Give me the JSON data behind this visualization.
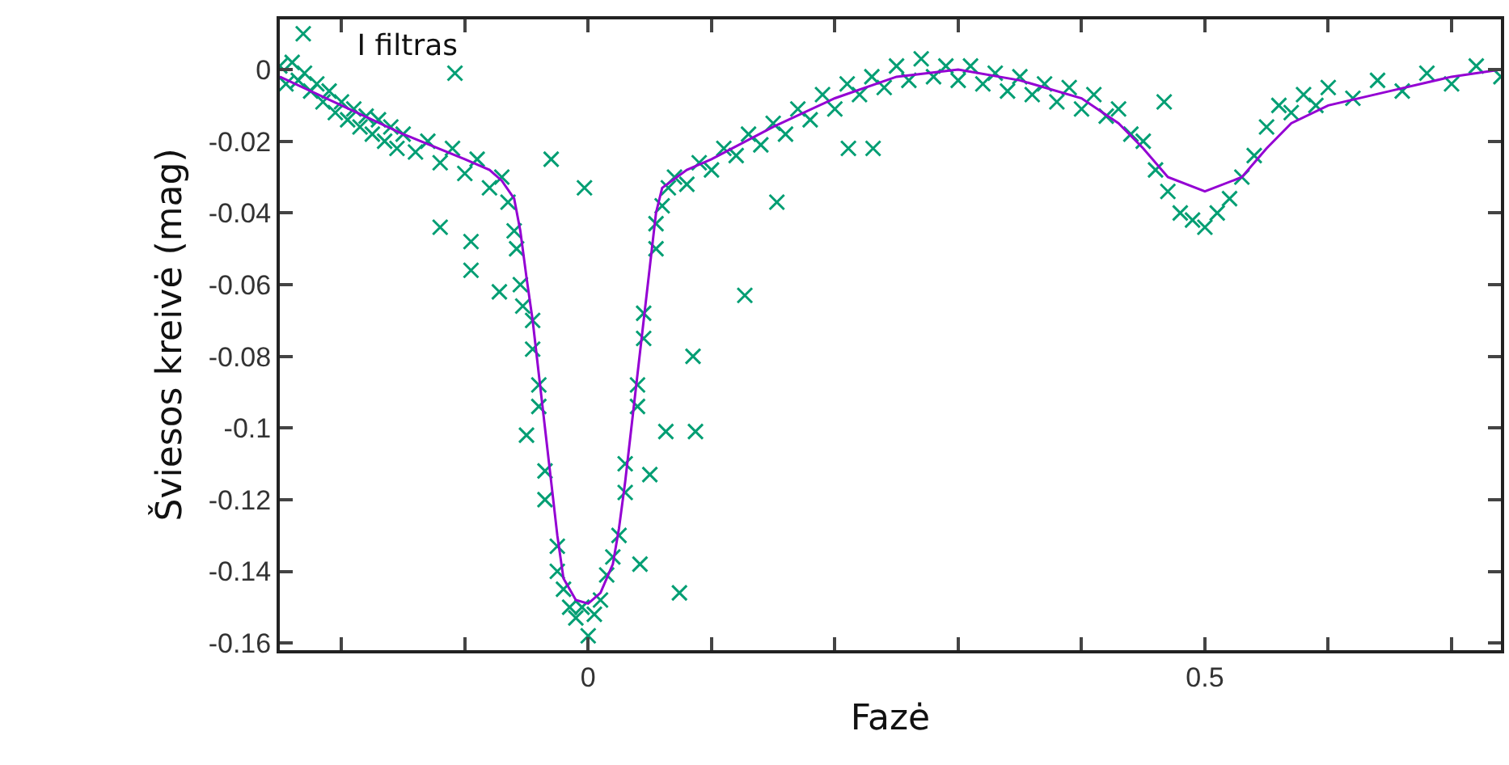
{
  "chart_data": {
    "type": "scatter",
    "title": "I filtras",
    "xlabel": "Fazė",
    "ylabel": "Šviesos kreivė (mag)",
    "xlim": [
      -0.25,
      0.74
    ],
    "ylim": [
      -0.162,
      0.014
    ],
    "xticks": [
      {
        "value": -0.2,
        "label": null
      },
      {
        "value": -0.1,
        "label": null
      },
      0,
      {
        "value": 0.1,
        "label": null
      },
      {
        "value": 0.2,
        "label": null
      },
      {
        "value": 0.3,
        "label": null
      },
      {
        "value": 0.4,
        "label": null
      },
      0.5,
      {
        "value": 0.6,
        "label": null
      },
      {
        "value": 0.7,
        "label": null
      }
    ],
    "yticks": [
      0,
      -0.02,
      -0.04,
      -0.06,
      -0.08,
      -0.1,
      -0.12,
      -0.14,
      -0.16
    ],
    "series": [
      {
        "color": "#009e73",
        "marker": "cross",
        "x": [
          -0.25,
          -0.245,
          -0.24,
          -0.235,
          -0.23,
          -0.225,
          -0.22,
          -0.215,
          -0.21,
          -0.205,
          -0.2,
          -0.195,
          -0.19,
          -0.185,
          -0.18,
          -0.175,
          -0.17,
          -0.165,
          -0.16,
          -0.155,
          -0.15,
          -0.14,
          -0.13,
          -0.12,
          -0.11,
          -0.1,
          -0.09,
          -0.08,
          -0.07,
          -0.065,
          -0.06,
          -0.058,
          -0.055,
          -0.053,
          -0.045,
          -0.045,
          -0.04,
          -0.04,
          -0.035,
          -0.035,
          -0.025,
          -0.025,
          -0.02,
          -0.015,
          -0.01,
          -0.005,
          0,
          0.005,
          0.01,
          0.015,
          0.02,
          0.025,
          0.03,
          0.03,
          0.04,
          0.04,
          0.045,
          0.045,
          0.055,
          0.055,
          0.06,
          0.065,
          0.07,
          0.08,
          0.09,
          0.1,
          0.11,
          0.12,
          0.13,
          0.14,
          0.15,
          0.16,
          0.17,
          0.18,
          0.19,
          0.2,
          0.21,
          0.22,
          0.23,
          0.24,
          0.25,
          0.26,
          0.27,
          0.28,
          0.29,
          0.3,
          0.31,
          0.32,
          0.33,
          0.34,
          0.35,
          0.36,
          0.37,
          0.38,
          0.39,
          0.4,
          0.41,
          0.42,
          0.43,
          0.44,
          0.45,
          0.46,
          0.47,
          0.48,
          0.49,
          0.5,
          0.51,
          0.52,
          0.53,
          0.54,
          0.55,
          0.56,
          0.57,
          0.58,
          0.59,
          0.6,
          0.62,
          0.64,
          0.66,
          0.68,
          0.7,
          0.72,
          0.74,
          -0.231,
          -0.108,
          -0.03,
          -0.003,
          0.063,
          0.087,
          0.05,
          0.042,
          0.074,
          0.127,
          0.085,
          -0.12,
          -0.095,
          -0.095,
          -0.072,
          -0.05,
          0.467,
          0.231,
          0.211,
          0.153
        ],
        "values": [
          0.001,
          -0.004,
          0.002,
          -0.003,
          -0.001,
          -0.006,
          -0.004,
          -0.009,
          -0.006,
          -0.012,
          -0.009,
          -0.014,
          -0.011,
          -0.016,
          -0.013,
          -0.018,
          -0.014,
          -0.02,
          -0.016,
          -0.022,
          -0.018,
          -0.023,
          -0.02,
          -0.026,
          -0.022,
          -0.029,
          -0.025,
          -0.033,
          -0.03,
          -0.037,
          -0.045,
          -0.05,
          -0.06,
          -0.066,
          -0.07,
          -0.078,
          -0.088,
          -0.094,
          -0.112,
          -0.12,
          -0.133,
          -0.14,
          -0.145,
          -0.15,
          -0.153,
          -0.15,
          -0.158,
          -0.152,
          -0.148,
          -0.141,
          -0.136,
          -0.13,
          -0.118,
          -0.11,
          -0.094,
          -0.088,
          -0.075,
          -0.068,
          -0.05,
          -0.043,
          -0.038,
          -0.033,
          -0.03,
          -0.032,
          -0.026,
          -0.028,
          -0.022,
          -0.024,
          -0.018,
          -0.021,
          -0.015,
          -0.018,
          -0.011,
          -0.014,
          -0.007,
          -0.011,
          -0.004,
          -0.007,
          -0.002,
          -0.005,
          0.001,
          -0.003,
          0.003,
          -0.002,
          0.001,
          -0.003,
          0.001,
          -0.004,
          -0.001,
          -0.006,
          -0.002,
          -0.007,
          -0.004,
          -0.009,
          -0.005,
          -0.011,
          -0.007,
          -0.013,
          -0.011,
          -0.018,
          -0.02,
          -0.028,
          -0.034,
          -0.04,
          -0.042,
          -0.044,
          -0.04,
          -0.036,
          -0.03,
          -0.024,
          -0.016,
          -0.01,
          -0.012,
          -0.007,
          -0.01,
          -0.005,
          -0.008,
          -0.003,
          -0.006,
          -0.001,
          -0.004,
          0.001,
          -0.002,
          0.01,
          -0.001,
          -0.025,
          -0.033,
          -0.101,
          -0.101,
          -0.113,
          -0.138,
          -0.146,
          -0.063,
          -0.08,
          -0.044,
          -0.048,
          -0.056,
          -0.062,
          -0.102,
          -0.009,
          -0.022,
          -0.022,
          -0.037
        ]
      },
      {
        "type": "line",
        "color": "#9400d3",
        "marker": "none",
        "line_style": "solid",
        "x": [
          -0.25,
          -0.2,
          -0.15,
          -0.1,
          -0.08,
          -0.07,
          -0.06,
          -0.055,
          -0.05,
          -0.045,
          -0.04,
          -0.035,
          -0.03,
          -0.025,
          -0.02,
          -0.01,
          0,
          0.01,
          0.02,
          0.025,
          0.03,
          0.035,
          0.04,
          0.045,
          0.05,
          0.055,
          0.06,
          0.08,
          0.1,
          0.15,
          0.2,
          0.25,
          0.3,
          0.35,
          0.4,
          0.43,
          0.45,
          0.47,
          0.5,
          0.53,
          0.55,
          0.57,
          0.6,
          0.65,
          0.7,
          0.74
        ],
        "values": [
          -0.002,
          -0.01,
          -0.018,
          -0.025,
          -0.028,
          -0.031,
          -0.036,
          -0.045,
          -0.058,
          -0.07,
          -0.085,
          -0.1,
          -0.115,
          -0.13,
          -0.142,
          -0.148,
          -0.149,
          -0.146,
          -0.138,
          -0.128,
          -0.115,
          -0.1,
          -0.085,
          -0.07,
          -0.055,
          -0.04,
          -0.033,
          -0.028,
          -0.025,
          -0.016,
          -0.008,
          -0.002,
          0,
          -0.003,
          -0.008,
          -0.015,
          -0.022,
          -0.03,
          -0.034,
          -0.03,
          -0.022,
          -0.015,
          -0.01,
          -0.006,
          -0.002,
          0
        ]
      }
    ]
  }
}
